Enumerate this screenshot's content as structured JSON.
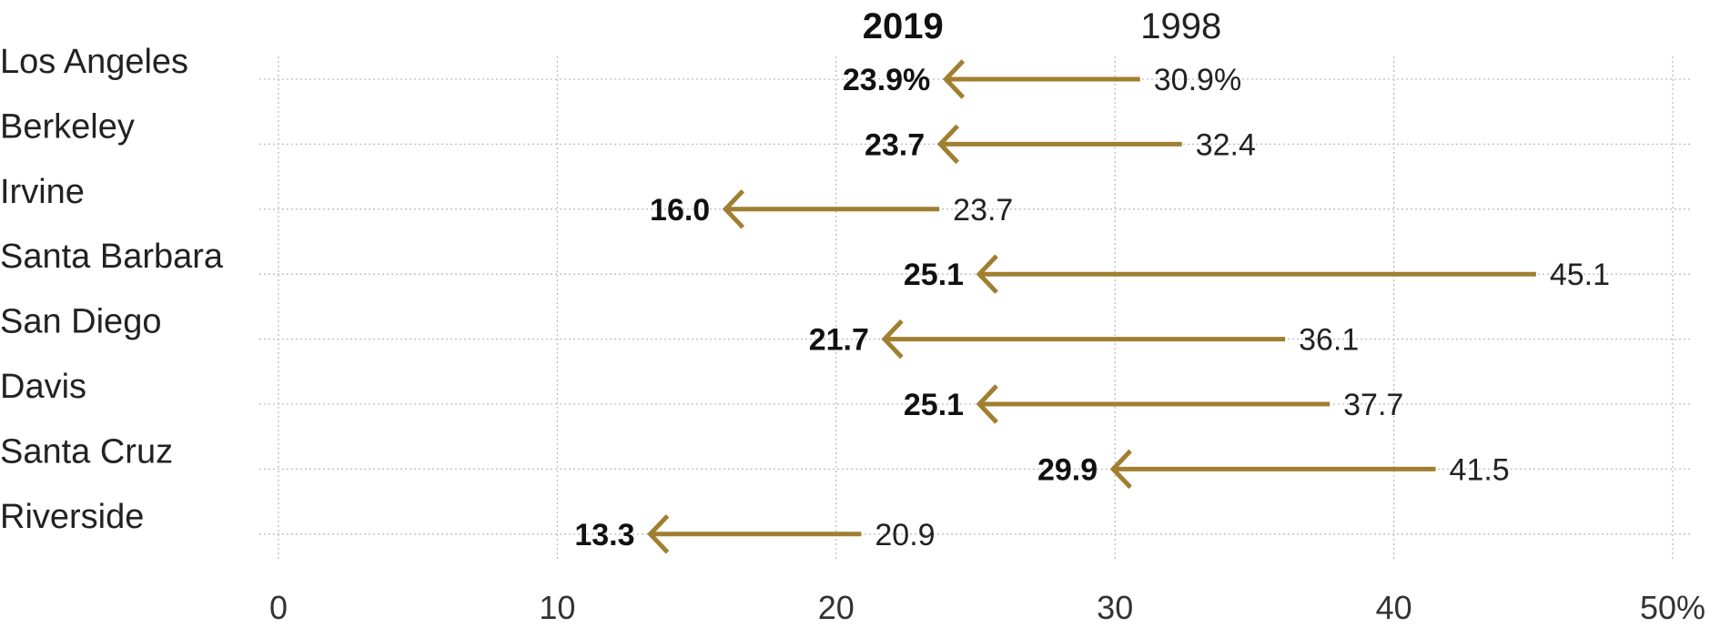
{
  "chart_data": {
    "type": "arrow",
    "headers": {
      "to": "2019",
      "from": "1998"
    },
    "x_ticks": [
      "0",
      "10",
      "20",
      "30",
      "40",
      "50%"
    ],
    "x_tick_values": [
      0,
      10,
      20,
      30,
      40,
      50
    ],
    "xlim": [
      0,
      50
    ],
    "grid": true,
    "arrow_color": "#a07f30",
    "rows": [
      {
        "city": "Los Angeles",
        "from": 30.9,
        "to": 23.9,
        "from_label": "30.9%",
        "to_label": "23.9%"
      },
      {
        "city": "Berkeley",
        "from": 32.4,
        "to": 23.7,
        "from_label": "32.4",
        "to_label": "23.7"
      },
      {
        "city": "Irvine",
        "from": 23.7,
        "to": 16.0,
        "from_label": "23.7",
        "to_label": "16.0"
      },
      {
        "city": "Santa Barbara",
        "from": 45.1,
        "to": 25.1,
        "from_label": "45.1",
        "to_label": "25.1"
      },
      {
        "city": "San Diego",
        "from": 36.1,
        "to": 21.7,
        "from_label": "36.1",
        "to_label": "21.7"
      },
      {
        "city": "Davis",
        "from": 37.7,
        "to": 25.1,
        "from_label": "37.7",
        "to_label": "25.1"
      },
      {
        "city": "Santa Cruz",
        "from": 41.5,
        "to": 29.9,
        "from_label": "41.5",
        "to_label": "29.9"
      },
      {
        "city": "Riverside",
        "from": 20.9,
        "to": 13.3,
        "from_label": "20.9",
        "to_label": "13.3"
      }
    ]
  }
}
